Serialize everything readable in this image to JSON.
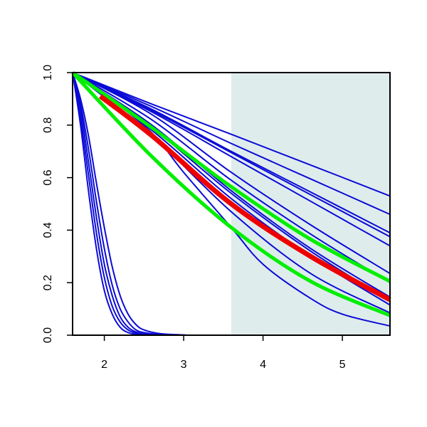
{
  "chart_data": {
    "type": "line",
    "title": "",
    "xlabel": "",
    "ylabel": "",
    "xlim": [
      1.6,
      5.6
    ],
    "ylim": [
      0.0,
      1.0
    ],
    "x_ticks": [
      2,
      3,
      4,
      5
    ],
    "y_ticks": [
      0.0,
      0.2,
      0.4,
      0.6,
      0.8,
      1.0
    ],
    "x_tick_labels": [
      "2",
      "3",
      "4",
      "5"
    ],
    "y_tick_labels": [
      "0.0",
      "0.2",
      "0.4",
      "0.6",
      "0.8",
      "1.0"
    ],
    "shaded_region": {
      "x_from": 3.6,
      "x_to": 5.6,
      "color": "#dfecec"
    },
    "grid": false,
    "colors": {
      "blue": "#0b0bd6",
      "green": "#00ee00",
      "red": "#ee0000"
    },
    "series": [
      {
        "color": "blue",
        "x": [
          1.6,
          2.6,
          3.6,
          4.6,
          5.6
        ],
        "y": [
          1.0,
          0.88,
          0.765,
          0.648,
          0.53
        ]
      },
      {
        "color": "blue",
        "x": [
          1.6,
          2.6,
          3.6,
          4.6,
          5.6
        ],
        "y": [
          1.0,
          0.87,
          0.73,
          0.595,
          0.46
        ]
      },
      {
        "color": "blue",
        "x": [
          1.6,
          2.6,
          3.6,
          4.6,
          5.6
        ],
        "y": [
          1.0,
          0.86,
          0.7,
          0.545,
          0.39
        ]
      },
      {
        "color": "blue",
        "x": [
          1.6,
          2.6,
          3.6,
          4.6,
          5.6
        ],
        "y": [
          1.0,
          0.855,
          0.695,
          0.535,
          0.375
        ]
      },
      {
        "color": "blue",
        "x": [
          1.6,
          2.6,
          3.6,
          4.6,
          5.6
        ],
        "y": [
          1.0,
          0.85,
          0.68,
          0.51,
          0.34
        ]
      },
      {
        "color": "blue",
        "x": [
          1.6,
          2.6,
          3.6,
          4.6,
          5.6
        ],
        "y": [
          1.0,
          0.84,
          0.62,
          0.42,
          0.235
        ]
      },
      {
        "color": "blue",
        "x": [
          1.6,
          2.6,
          3.6,
          4.6,
          5.6
        ],
        "y": [
          1.0,
          0.82,
          0.59,
          0.385,
          0.2
        ]
      },
      {
        "color": "blue",
        "x": [
          1.6,
          2.6,
          3.6,
          4.6,
          5.6
        ],
        "y": [
          1.0,
          0.8,
          0.55,
          0.33,
          0.145
        ]
      },
      {
        "color": "blue",
        "x": [
          1.6,
          2.6,
          3.6,
          4.6,
          5.6
        ],
        "y": [
          1.0,
          0.79,
          0.54,
          0.32,
          0.13
        ]
      },
      {
        "color": "blue",
        "x": [
          1.6,
          2.6,
          3.6,
          4.6,
          5.6
        ],
        "y": [
          1.0,
          0.78,
          0.52,
          0.3,
          0.115
        ]
      },
      {
        "color": "blue",
        "x": [
          1.6,
          2.6,
          3.6,
          4.6,
          5.6
        ],
        "y": [
          1.0,
          0.76,
          0.47,
          0.235,
          0.085
        ]
      },
      {
        "color": "blue",
        "x": [
          1.6,
          2.0,
          2.6,
          3.0,
          3.6,
          4.0,
          4.6,
          5.0,
          5.6
        ],
        "y": [
          1.0,
          0.92,
          0.77,
          0.62,
          0.41,
          0.27,
          0.14,
          0.08,
          0.035
        ]
      },
      {
        "color": "blue",
        "x": [
          1.6,
          1.7,
          1.8,
          1.9,
          2.0,
          2.1,
          2.2,
          2.3,
          2.4,
          2.5,
          2.7,
          3.0,
          3.3,
          5.6
        ],
        "y": [
          1.0,
          0.9,
          0.76,
          0.58,
          0.41,
          0.26,
          0.15,
          0.08,
          0.04,
          0.02,
          0.006,
          0.001,
          0.0,
          0.0
        ]
      },
      {
        "color": "blue",
        "x": [
          1.6,
          1.7,
          1.8,
          1.9,
          2.0,
          2.1,
          2.2,
          2.3,
          2.4,
          2.5,
          2.7,
          3.0,
          3.3,
          5.6
        ],
        "y": [
          1.0,
          0.88,
          0.71,
          0.51,
          0.33,
          0.19,
          0.1,
          0.05,
          0.02,
          0.01,
          0.003,
          0.0,
          0.0,
          0.0
        ]
      },
      {
        "color": "blue",
        "x": [
          1.6,
          1.7,
          1.8,
          1.9,
          2.0,
          2.1,
          2.2,
          2.3,
          2.4,
          2.5,
          2.7,
          3.0,
          3.3,
          5.6
        ],
        "y": [
          1.0,
          0.86,
          0.66,
          0.45,
          0.27,
          0.15,
          0.07,
          0.03,
          0.012,
          0.005,
          0.001,
          0.0,
          0.0,
          0.0
        ]
      },
      {
        "color": "blue",
        "x": [
          1.6,
          1.7,
          1.8,
          1.9,
          2.0,
          2.1,
          2.2,
          2.3,
          2.4,
          2.5,
          2.7,
          3.0,
          3.3,
          5.6
        ],
        "y": [
          1.0,
          0.83,
          0.61,
          0.39,
          0.22,
          0.11,
          0.05,
          0.02,
          0.008,
          0.003,
          0.0,
          0.0,
          0.0,
          0.0
        ]
      },
      {
        "color": "blue",
        "x": [
          1.6,
          1.7,
          1.8,
          1.9,
          2.0,
          2.1,
          2.2,
          2.3,
          2.4,
          2.5,
          2.7,
          3.0,
          3.3,
          5.6
        ],
        "y": [
          1.0,
          0.8,
          0.55,
          0.33,
          0.17,
          0.08,
          0.03,
          0.01,
          0.004,
          0.001,
          0.0,
          0.0,
          0.0,
          0.0
        ]
      },
      {
        "color": "green",
        "x": [
          1.6,
          2.6,
          3.6,
          4.6,
          5.6
        ],
        "y": [
          1.0,
          0.79,
          0.565,
          0.365,
          0.205
        ]
      },
      {
        "color": "green",
        "x": [
          1.6,
          2.6,
          3.6,
          4.6,
          5.6
        ],
        "y": [
          1.0,
          0.68,
          0.41,
          0.205,
          0.075
        ]
      },
      {
        "color": "red",
        "x": [
          1.95,
          2.6,
          3.6,
          4.6,
          5.6
        ],
        "y": [
          0.91,
          0.76,
          0.5,
          0.3,
          0.135
        ]
      }
    ]
  }
}
